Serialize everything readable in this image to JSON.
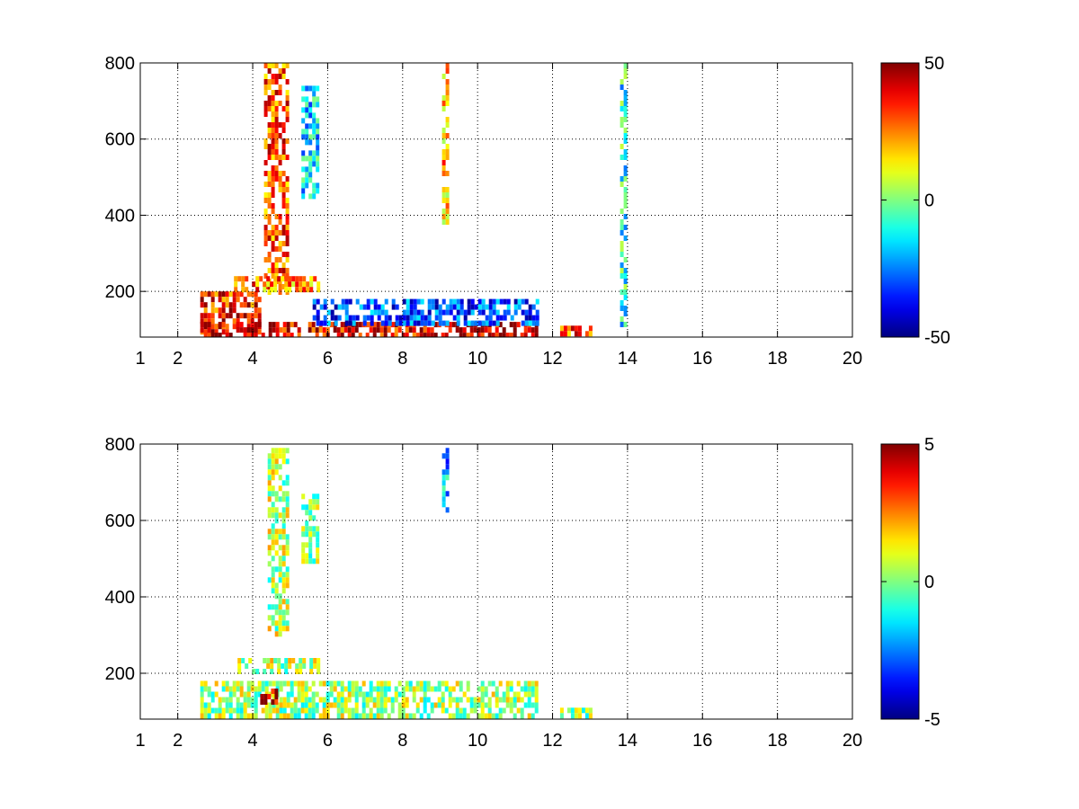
{
  "chart_data": [
    {
      "type": "heatmap",
      "title": "",
      "xlabel": "",
      "ylabel": "",
      "xlim": [
        1,
        20
      ],
      "ylim": [
        80,
        800
      ],
      "xticks": [
        1,
        2,
        4,
        6,
        8,
        10,
        12,
        14,
        16,
        18,
        20
      ],
      "yticks": [
        200,
        400,
        600,
        800
      ],
      "grid": true,
      "colormap": "jet",
      "clim": [
        -50,
        50
      ],
      "colorbar_ticks": [
        50,
        0,
        -50
      ],
      "description_of_values": [
        {
          "x": [
            2.6,
            4.2
          ],
          "y": [
            90,
            200
          ],
          "value": 35
        },
        {
          "x": [
            2.6,
            11.6
          ],
          "y": [
            85,
            120
          ],
          "value": 40
        },
        {
          "x": [
            5.6,
            11.6
          ],
          "y": [
            120,
            180
          ],
          "value": -30
        },
        {
          "x": [
            4.3,
            4.9
          ],
          "y": [
            200,
            800
          ],
          "value": 30
        },
        {
          "x": [
            5.3,
            5.7
          ],
          "y": [
            450,
            740
          ],
          "value": -15
        },
        {
          "x": [
            3.5,
            5.8
          ],
          "y": [
            210,
            240
          ],
          "value": 25
        },
        {
          "x": [
            9.05,
            9.15
          ],
          "y": [
            380,
            800
          ],
          "value": 20
        },
        {
          "x": [
            12.2,
            13.0
          ],
          "y": [
            85,
            110
          ],
          "value": 30
        },
        {
          "x": [
            13.8,
            13.95
          ],
          "y": [
            120,
            800
          ],
          "value": -10
        }
      ]
    },
    {
      "type": "heatmap",
      "title": "",
      "xlabel": "",
      "ylabel": "",
      "xlim": [
        1,
        20
      ],
      "ylim": [
        80,
        800
      ],
      "xticks": [
        1,
        2,
        4,
        6,
        8,
        10,
        12,
        14,
        16,
        18,
        20
      ],
      "yticks": [
        200,
        400,
        600,
        800
      ],
      "grid": true,
      "colormap": "jet",
      "clim": [
        -5,
        5
      ],
      "colorbar_ticks": [
        5,
        0,
        -5
      ],
      "description_of_values": [
        {
          "x": [
            2.6,
            11.6
          ],
          "y": [
            85,
            180
          ],
          "value": 0.3
        },
        {
          "x": [
            4.4,
            4.9
          ],
          "y": [
            300,
            790
          ],
          "value": 0.5
        },
        {
          "x": [
            5.3,
            5.7
          ],
          "y": [
            500,
            670
          ],
          "value": 0.3
        },
        {
          "x": [
            3.5,
            5.8
          ],
          "y": [
            210,
            240
          ],
          "value": 0.5
        },
        {
          "x": [
            4.2,
            4.6
          ],
          "y": [
            130,
            160
          ],
          "value": 4.5
        },
        {
          "x": [
            9.05,
            9.15
          ],
          "y": [
            620,
            790
          ],
          "value": -2
        },
        {
          "x": [
            12.2,
            13.0
          ],
          "y": [
            85,
            110
          ],
          "value": 0.3
        }
      ]
    }
  ]
}
